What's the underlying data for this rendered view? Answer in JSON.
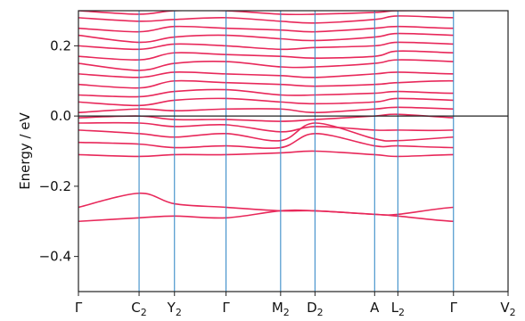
{
  "chart_data": {
    "type": "line",
    "title": "",
    "xlabel": "",
    "ylabel": "Energy / eV",
    "ylim": [
      -0.5,
      0.3
    ],
    "yticks": [
      {
        "value": 0.2,
        "label": "0.2"
      },
      {
        "value": 0.0,
        "label": "0.0"
      },
      {
        "value": -0.2,
        "label": "−0.2"
      },
      {
        "value": -0.4,
        "label": "−0.4"
      }
    ],
    "kpoints": [
      {
        "label": "Γ",
        "sub": "",
        "x": 0
      },
      {
        "label": "C",
        "sub": "2",
        "x": 6.0
      },
      {
        "label": "Y",
        "sub": "2",
        "x": 9.5
      },
      {
        "label": "Γ",
        "sub": "",
        "x": 14.6
      },
      {
        "label": "M",
        "sub": "2",
        "x": 20.0
      },
      {
        "label": "D",
        "sub": "2",
        "x": 23.4
      },
      {
        "label": "A",
        "sub": "",
        "x": 29.3
      },
      {
        "label": "L",
        "sub": "2",
        "x": 31.6
      },
      {
        "label": "Γ",
        "sub": "",
        "x": 37.1
      },
      {
        "label": "V",
        "sub": "2",
        "x": 42.5
      }
    ],
    "fermi_level": 0.0,
    "grid": false,
    "colors": {
      "bands": "#e8285a",
      "kpoint_lines": "#3a8dc8",
      "fermi_line": "#222222",
      "axes": "#222222"
    },
    "bands": [
      [
        -0.3,
        -0.29,
        -0.285,
        -0.29,
        -0.27,
        -0.27,
        -0.28,
        -0.285,
        -0.3,
        -0.3,
        -0.31
      ],
      [
        -0.26,
        -0.22,
        -0.25,
        -0.26,
        -0.27,
        -0.27,
        -0.28,
        -0.28,
        -0.26,
        -0.26,
        -0.225
      ],
      [
        -0.11,
        -0.115,
        -0.11,
        -0.11,
        -0.105,
        -0.1,
        -0.11,
        -0.115,
        -0.11,
        -0.11,
        -0.105
      ],
      [
        -0.075,
        -0.08,
        -0.09,
        -0.085,
        -0.09,
        -0.05,
        -0.085,
        -0.085,
        -0.09,
        -0.09,
        -0.09
      ],
      [
        -0.04,
        -0.05,
        -0.06,
        -0.05,
        -0.07,
        -0.02,
        -0.065,
        -0.07,
        -0.06,
        -0.05,
        -0.06
      ],
      [
        -0.02,
        -0.02,
        -0.03,
        -0.025,
        -0.045,
        -0.03,
        -0.04,
        -0.04,
        -0.04,
        -0.025,
        -0.035
      ],
      [
        -0.005,
        0.0,
        -0.01,
        -0.01,
        -0.015,
        -0.01,
        0.0,
        0.005,
        -0.005,
        -0.01,
        -0.01
      ],
      [
        0.01,
        0.02,
        0.015,
        0.02,
        0.02,
        0.01,
        0.02,
        0.025,
        0.02,
        0.015,
        0.02
      ],
      [
        0.04,
        0.03,
        0.045,
        0.05,
        0.04,
        0.035,
        0.04,
        0.05,
        0.045,
        0.04,
        0.05
      ],
      [
        0.06,
        0.055,
        0.07,
        0.075,
        0.06,
        0.06,
        0.065,
        0.07,
        0.065,
        0.07,
        0.075
      ],
      [
        0.09,
        0.08,
        0.1,
        0.095,
        0.09,
        0.085,
        0.09,
        0.095,
        0.1,
        0.09,
        0.1
      ],
      [
        0.12,
        0.11,
        0.125,
        0.12,
        0.115,
        0.11,
        0.12,
        0.125,
        0.12,
        0.12,
        0.13
      ],
      [
        0.15,
        0.13,
        0.15,
        0.155,
        0.14,
        0.14,
        0.15,
        0.16,
        0.155,
        0.145,
        0.155
      ],
      [
        0.17,
        0.16,
        0.18,
        0.175,
        0.17,
        0.165,
        0.17,
        0.185,
        0.18,
        0.175,
        0.18
      ],
      [
        0.2,
        0.19,
        0.205,
        0.2,
        0.19,
        0.195,
        0.2,
        0.21,
        0.205,
        0.2,
        0.21
      ],
      [
        0.23,
        0.21,
        0.225,
        0.23,
        0.22,
        0.215,
        0.225,
        0.235,
        0.23,
        0.225,
        0.235
      ],
      [
        0.25,
        0.24,
        0.255,
        0.25,
        0.245,
        0.24,
        0.25,
        0.255,
        0.25,
        0.25,
        0.26
      ],
      [
        0.28,
        0.27,
        0.275,
        0.28,
        0.27,
        0.265,
        0.275,
        0.285,
        0.28,
        0.28,
        0.28
      ],
      [
        0.3,
        0.29,
        0.3,
        0.3,
        0.29,
        0.29,
        0.295,
        0.3,
        0.3,
        0.3,
        0.3
      ]
    ]
  }
}
